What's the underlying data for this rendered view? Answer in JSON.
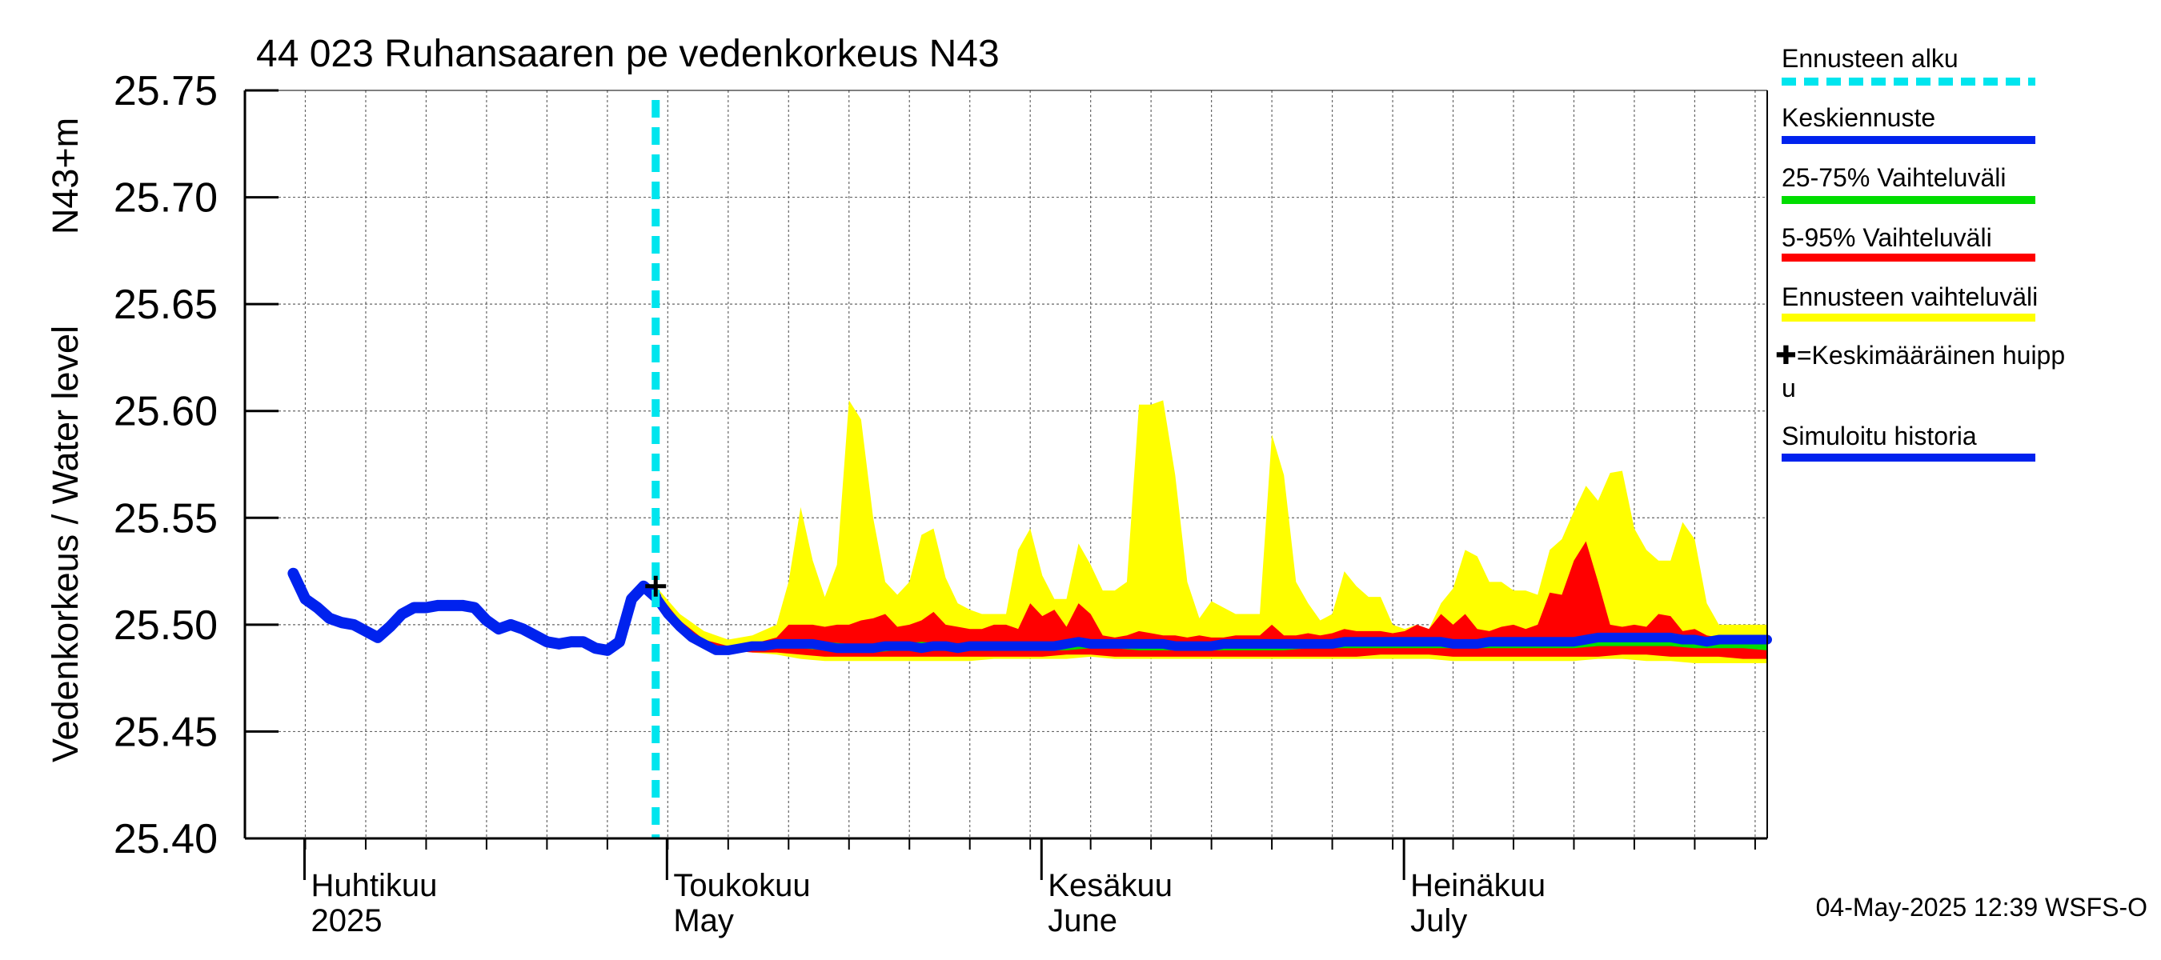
{
  "chart_data": {
    "type": "area",
    "title": "44 023 Ruhansaaren pe vedenkorkeus N43",
    "ylabel_main": "Vedenkorkeus / Water level",
    "ylabel_unit": "N43+m",
    "ylim": [
      25.4,
      25.75
    ],
    "yticks": [
      "25.40",
      "25.45",
      "25.50",
      "25.55",
      "25.60",
      "25.65",
      "25.70",
      "25.75"
    ],
    "xlim_days": [
      0,
      126
    ],
    "month_labels": [
      {
        "day": 5,
        "fi": "Huhtikuu",
        "en": "2025"
      },
      {
        "day": 35,
        "fi": "Toukokuu",
        "en": "May"
      },
      {
        "day": 66,
        "fi": "Kesäkuu",
        "en": "June"
      },
      {
        "day": 96,
        "fi": "Heinäkuu",
        "en": "July"
      }
    ],
    "forecast_start_day": 34,
    "mean_peak": {
      "day": 34,
      "value": 25.518
    },
    "legend": [
      {
        "label": "Ennusteen alku",
        "color": "#00e5ee",
        "style": "dashed"
      },
      {
        "label": "Keskiennuste",
        "color": "#0022ee",
        "style": "solid"
      },
      {
        "label": "25-75% Vaihteluväli",
        "color": "#00dd00",
        "style": "solid"
      },
      {
        "label": "5-95% Vaihteluväli",
        "color": "#ff0000",
        "style": "solid"
      },
      {
        "label": "Ennusteen vaihteluväli",
        "color": "#ffff00",
        "style": "solid"
      },
      {
        "label": "✚=Keskimääräinen huippu",
        "color": "#000000",
        "style": "marker"
      },
      {
        "label": "Simuloitu historia",
        "color": "#0022ee",
        "style": "solid"
      }
    ],
    "footer": "04-May-2025 12:39 WSFS-O",
    "series": {
      "history": {
        "name": "Simuloitu historia",
        "x": [
          4,
          5,
          6,
          7,
          8,
          9,
          10,
          11,
          12,
          13,
          14,
          15,
          16,
          17,
          18,
          19,
          20,
          21,
          22,
          23,
          24,
          25,
          26,
          27,
          28,
          29,
          30,
          31,
          32,
          33,
          34
        ],
        "y": [
          25.524,
          25.512,
          25.508,
          25.503,
          25.501,
          25.5,
          25.497,
          25.494,
          25.499,
          25.505,
          25.508,
          25.508,
          25.509,
          25.509,
          25.509,
          25.508,
          25.502,
          25.498,
          25.5,
          25.498,
          25.495,
          25.492,
          25.491,
          25.492,
          25.492,
          25.489,
          25.488,
          25.492,
          25.512,
          25.518,
          25.513
        ]
      },
      "forecast_min": {
        "name": "Ennusteen vaihteluväli (min)",
        "x": [
          34,
          36,
          38,
          40,
          42,
          44,
          46,
          48,
          50,
          52,
          54,
          56,
          58,
          60,
          62,
          64,
          66,
          68,
          70,
          72,
          74,
          76,
          78,
          80,
          82,
          84,
          86,
          88,
          90,
          92,
          94,
          96,
          98,
          100,
          102,
          104,
          106,
          108,
          110,
          112,
          114,
          116,
          118,
          120,
          122,
          124,
          126
        ],
        "y": [
          25.513,
          25.497,
          25.49,
          25.488,
          25.487,
          25.486,
          25.484,
          25.483,
          25.483,
          25.483,
          25.483,
          25.483,
          25.483,
          25.483,
          25.484,
          25.484,
          25.484,
          25.484,
          25.485,
          25.484,
          25.484,
          25.484,
          25.484,
          25.484,
          25.484,
          25.484,
          25.484,
          25.484,
          25.484,
          25.484,
          25.484,
          25.484,
          25.484,
          25.483,
          25.483,
          25.483,
          25.483,
          25.483,
          25.483,
          25.484,
          25.484,
          25.483,
          25.483,
          25.482,
          25.482,
          25.482,
          25.482
        ]
      },
      "forecast_max": {
        "name": "Ennusteen vaihteluväli (max)",
        "x": [
          34,
          36,
          38,
          40,
          42,
          44,
          45,
          46,
          47,
          48,
          49,
          50,
          51,
          52,
          53,
          54,
          55,
          56,
          57,
          58,
          59,
          60,
          61,
          62,
          63,
          64,
          65,
          66,
          67,
          68,
          69,
          70,
          71,
          72,
          73,
          74,
          75,
          76,
          77,
          78,
          79,
          80,
          81,
          82,
          83,
          84,
          85,
          86,
          87,
          88,
          89,
          90,
          91,
          92,
          93,
          94,
          95,
          96,
          97,
          98,
          99,
          100,
          101,
          102,
          103,
          104,
          105,
          106,
          107,
          108,
          109,
          110,
          111,
          112,
          113,
          114,
          115,
          116,
          117,
          118,
          119,
          120,
          121,
          122,
          123,
          124,
          125,
          126
        ],
        "y": [
          25.518,
          25.505,
          25.497,
          25.493,
          25.495,
          25.5,
          25.52,
          25.555,
          25.53,
          25.513,
          25.528,
          25.605,
          25.596,
          25.55,
          25.52,
          25.514,
          25.52,
          25.542,
          25.545,
          25.522,
          25.51,
          25.507,
          25.505,
          25.505,
          25.505,
          25.535,
          25.545,
          25.523,
          25.512,
          25.512,
          25.538,
          25.528,
          25.516,
          25.516,
          25.52,
          25.603,
          25.603,
          25.605,
          25.57,
          25.52,
          25.503,
          25.511,
          25.508,
          25.505,
          25.505,
          25.505,
          25.589,
          25.57,
          25.52,
          25.51,
          25.502,
          25.505,
          25.525,
          25.518,
          25.513,
          25.513,
          25.5,
          25.498,
          25.5,
          25.498,
          25.51,
          25.517,
          25.535,
          25.532,
          25.52,
          25.52,
          25.516,
          25.516,
          25.514,
          25.535,
          25.54,
          25.553,
          25.565,
          25.558,
          25.571,
          25.572,
          25.545,
          25.535,
          25.53,
          25.53,
          25.548,
          25.54,
          25.51,
          25.5,
          25.5,
          25.5,
          25.5,
          25.5
        ]
      },
      "p5": {
        "name": "5-95% Vaihteluväli (5%)",
        "x": [
          34,
          36,
          38,
          40,
          42,
          44,
          46,
          48,
          50,
          52,
          54,
          56,
          58,
          60,
          62,
          64,
          66,
          68,
          70,
          72,
          74,
          76,
          78,
          80,
          82,
          84,
          86,
          88,
          90,
          92,
          94,
          96,
          98,
          100,
          102,
          104,
          106,
          108,
          110,
          112,
          114,
          116,
          118,
          120,
          122,
          124,
          126
        ],
        "y": [
          25.513,
          25.498,
          25.49,
          25.488,
          25.487,
          25.487,
          25.486,
          25.485,
          25.485,
          25.485,
          25.485,
          25.485,
          25.485,
          25.485,
          25.485,
          25.485,
          25.485,
          25.486,
          25.486,
          25.485,
          25.485,
          25.485,
          25.485,
          25.485,
          25.485,
          25.485,
          25.485,
          25.485,
          25.485,
          25.485,
          25.486,
          25.486,
          25.486,
          25.485,
          25.485,
          25.485,
          25.485,
          25.485,
          25.485,
          25.485,
          25.486,
          25.486,
          25.485,
          25.485,
          25.485,
          25.484,
          25.484
        ]
      },
      "p95": {
        "name": "5-95% Vaihteluväli (95%)",
        "x": [
          34,
          36,
          38,
          40,
          42,
          44,
          45,
          46,
          47,
          48,
          49,
          50,
          51,
          52,
          53,
          54,
          55,
          56,
          57,
          58,
          59,
          60,
          61,
          62,
          63,
          64,
          65,
          66,
          67,
          68,
          69,
          70,
          71,
          72,
          73,
          74,
          75,
          76,
          77,
          78,
          79,
          80,
          81,
          82,
          83,
          84,
          85,
          86,
          87,
          88,
          89,
          90,
          91,
          92,
          93,
          94,
          95,
          96,
          97,
          98,
          99,
          100,
          101,
          102,
          103,
          104,
          105,
          106,
          107,
          108,
          109,
          110,
          111,
          112,
          113,
          114,
          115,
          116,
          117,
          118,
          119,
          120,
          121,
          122,
          123,
          124,
          125,
          126
        ],
        "y": [
          25.516,
          25.502,
          25.493,
          25.49,
          25.491,
          25.494,
          25.5,
          25.5,
          25.5,
          25.499,
          25.5,
          25.5,
          25.502,
          25.503,
          25.505,
          25.499,
          25.5,
          25.502,
          25.506,
          25.5,
          25.499,
          25.498,
          25.498,
          25.5,
          25.5,
          25.498,
          25.51,
          25.504,
          25.507,
          25.499,
          25.51,
          25.505,
          25.495,
          25.494,
          25.495,
          25.497,
          25.496,
          25.495,
          25.495,
          25.494,
          25.495,
          25.494,
          25.494,
          25.495,
          25.495,
          25.495,
          25.5,
          25.495,
          25.495,
          25.496,
          25.495,
          25.496,
          25.498,
          25.497,
          25.497,
          25.497,
          25.496,
          25.497,
          25.5,
          25.498,
          25.505,
          25.5,
          25.505,
          25.498,
          25.497,
          25.499,
          25.5,
          25.498,
          25.5,
          25.515,
          25.514,
          25.53,
          25.539,
          25.52,
          25.5,
          25.499,
          25.5,
          25.499,
          25.505,
          25.504,
          25.497,
          25.498,
          25.495,
          25.494,
          25.494,
          25.494,
          25.494,
          25.494
        ]
      },
      "p25": {
        "name": "25-75% Vaihteluväli (25%)",
        "x": [
          34,
          36,
          38,
          40,
          42,
          44,
          46,
          48,
          50,
          52,
          54,
          56,
          58,
          60,
          62,
          64,
          66,
          68,
          70,
          72,
          74,
          76,
          78,
          80,
          82,
          84,
          86,
          88,
          90,
          92,
          94,
          96,
          98,
          100,
          102,
          104,
          106,
          108,
          110,
          112,
          114,
          116,
          118,
          120,
          122,
          124,
          126
        ],
        "y": [
          25.513,
          25.499,
          25.491,
          25.488,
          25.488,
          25.489,
          25.489,
          25.488,
          25.487,
          25.487,
          25.488,
          25.488,
          25.488,
          25.488,
          25.488,
          25.488,
          25.488,
          25.488,
          25.489,
          25.489,
          25.488,
          25.488,
          25.488,
          25.488,
          25.488,
          25.488,
          25.488,
          25.489,
          25.489,
          25.489,
          25.489,
          25.489,
          25.489,
          25.489,
          25.489,
          25.489,
          25.489,
          25.489,
          25.489,
          25.49,
          25.49,
          25.49,
          25.49,
          25.489,
          25.489,
          25.489,
          25.488
        ]
      },
      "p75": {
        "name": "25-75% Vaihteluväli (75%)",
        "x": [
          34,
          36,
          38,
          40,
          42,
          44,
          46,
          48,
          50,
          52,
          54,
          56,
          58,
          60,
          62,
          64,
          66,
          68,
          70,
          72,
          74,
          76,
          78,
          80,
          82,
          84,
          86,
          88,
          90,
          92,
          94,
          96,
          98,
          100,
          102,
          104,
          106,
          108,
          110,
          112,
          114,
          116,
          118,
          120,
          122,
          124,
          126
        ],
        "y": [
          25.514,
          25.501,
          25.492,
          25.489,
          25.49,
          25.491,
          25.492,
          25.492,
          25.491,
          25.491,
          25.491,
          25.492,
          25.491,
          25.491,
          25.492,
          25.492,
          25.492,
          25.492,
          25.493,
          25.493,
          25.492,
          25.492,
          25.492,
          25.492,
          25.492,
          25.492,
          25.492,
          25.493,
          25.493,
          25.493,
          25.493,
          25.493,
          25.493,
          25.493,
          25.493,
          25.493,
          25.493,
          25.494,
          25.494,
          25.495,
          25.495,
          25.495,
          25.495,
          25.494,
          25.494,
          25.494,
          25.493
        ]
      },
      "mean": {
        "name": "Keskiennuste",
        "x": [
          34,
          35,
          36,
          37,
          38,
          39,
          40,
          41,
          42,
          43,
          44,
          45,
          46,
          47,
          48,
          49,
          50,
          51,
          52,
          53,
          54,
          55,
          56,
          57,
          58,
          59,
          60,
          61,
          62,
          63,
          64,
          65,
          66,
          67,
          68,
          69,
          70,
          71,
          72,
          73,
          74,
          75,
          76,
          77,
          78,
          79,
          80,
          81,
          82,
          83,
          84,
          85,
          86,
          87,
          88,
          89,
          90,
          91,
          92,
          93,
          94,
          95,
          96,
          97,
          98,
          99,
          100,
          101,
          102,
          103,
          104,
          105,
          106,
          107,
          108,
          109,
          110,
          111,
          112,
          113,
          114,
          115,
          116,
          117,
          118,
          119,
          120,
          121,
          122,
          123,
          124,
          125,
          126
        ],
        "y": [
          25.513,
          25.505,
          25.499,
          25.494,
          25.491,
          25.488,
          25.488,
          25.489,
          25.49,
          25.49,
          25.491,
          25.491,
          25.491,
          25.491,
          25.49,
          25.489,
          25.489,
          25.489,
          25.489,
          25.49,
          25.49,
          25.49,
          25.489,
          25.49,
          25.49,
          25.489,
          25.49,
          25.49,
          25.49,
          25.49,
          25.49,
          25.49,
          25.49,
          25.49,
          25.491,
          25.492,
          25.491,
          25.491,
          25.491,
          25.491,
          25.491,
          25.491,
          25.491,
          25.49,
          25.49,
          25.49,
          25.49,
          25.491,
          25.491,
          25.491,
          25.491,
          25.491,
          25.491,
          25.491,
          25.491,
          25.491,
          25.491,
          25.492,
          25.492,
          25.492,
          25.492,
          25.492,
          25.492,
          25.492,
          25.492,
          25.492,
          25.491,
          25.491,
          25.491,
          25.492,
          25.492,
          25.492,
          25.492,
          25.492,
          25.492,
          25.492,
          25.492,
          25.493,
          25.494,
          25.494,
          25.494,
          25.494,
          25.494,
          25.494,
          25.494,
          25.493,
          25.493,
          25.492,
          25.493,
          25.493,
          25.493,
          25.493,
          25.493
        ]
      }
    }
  }
}
